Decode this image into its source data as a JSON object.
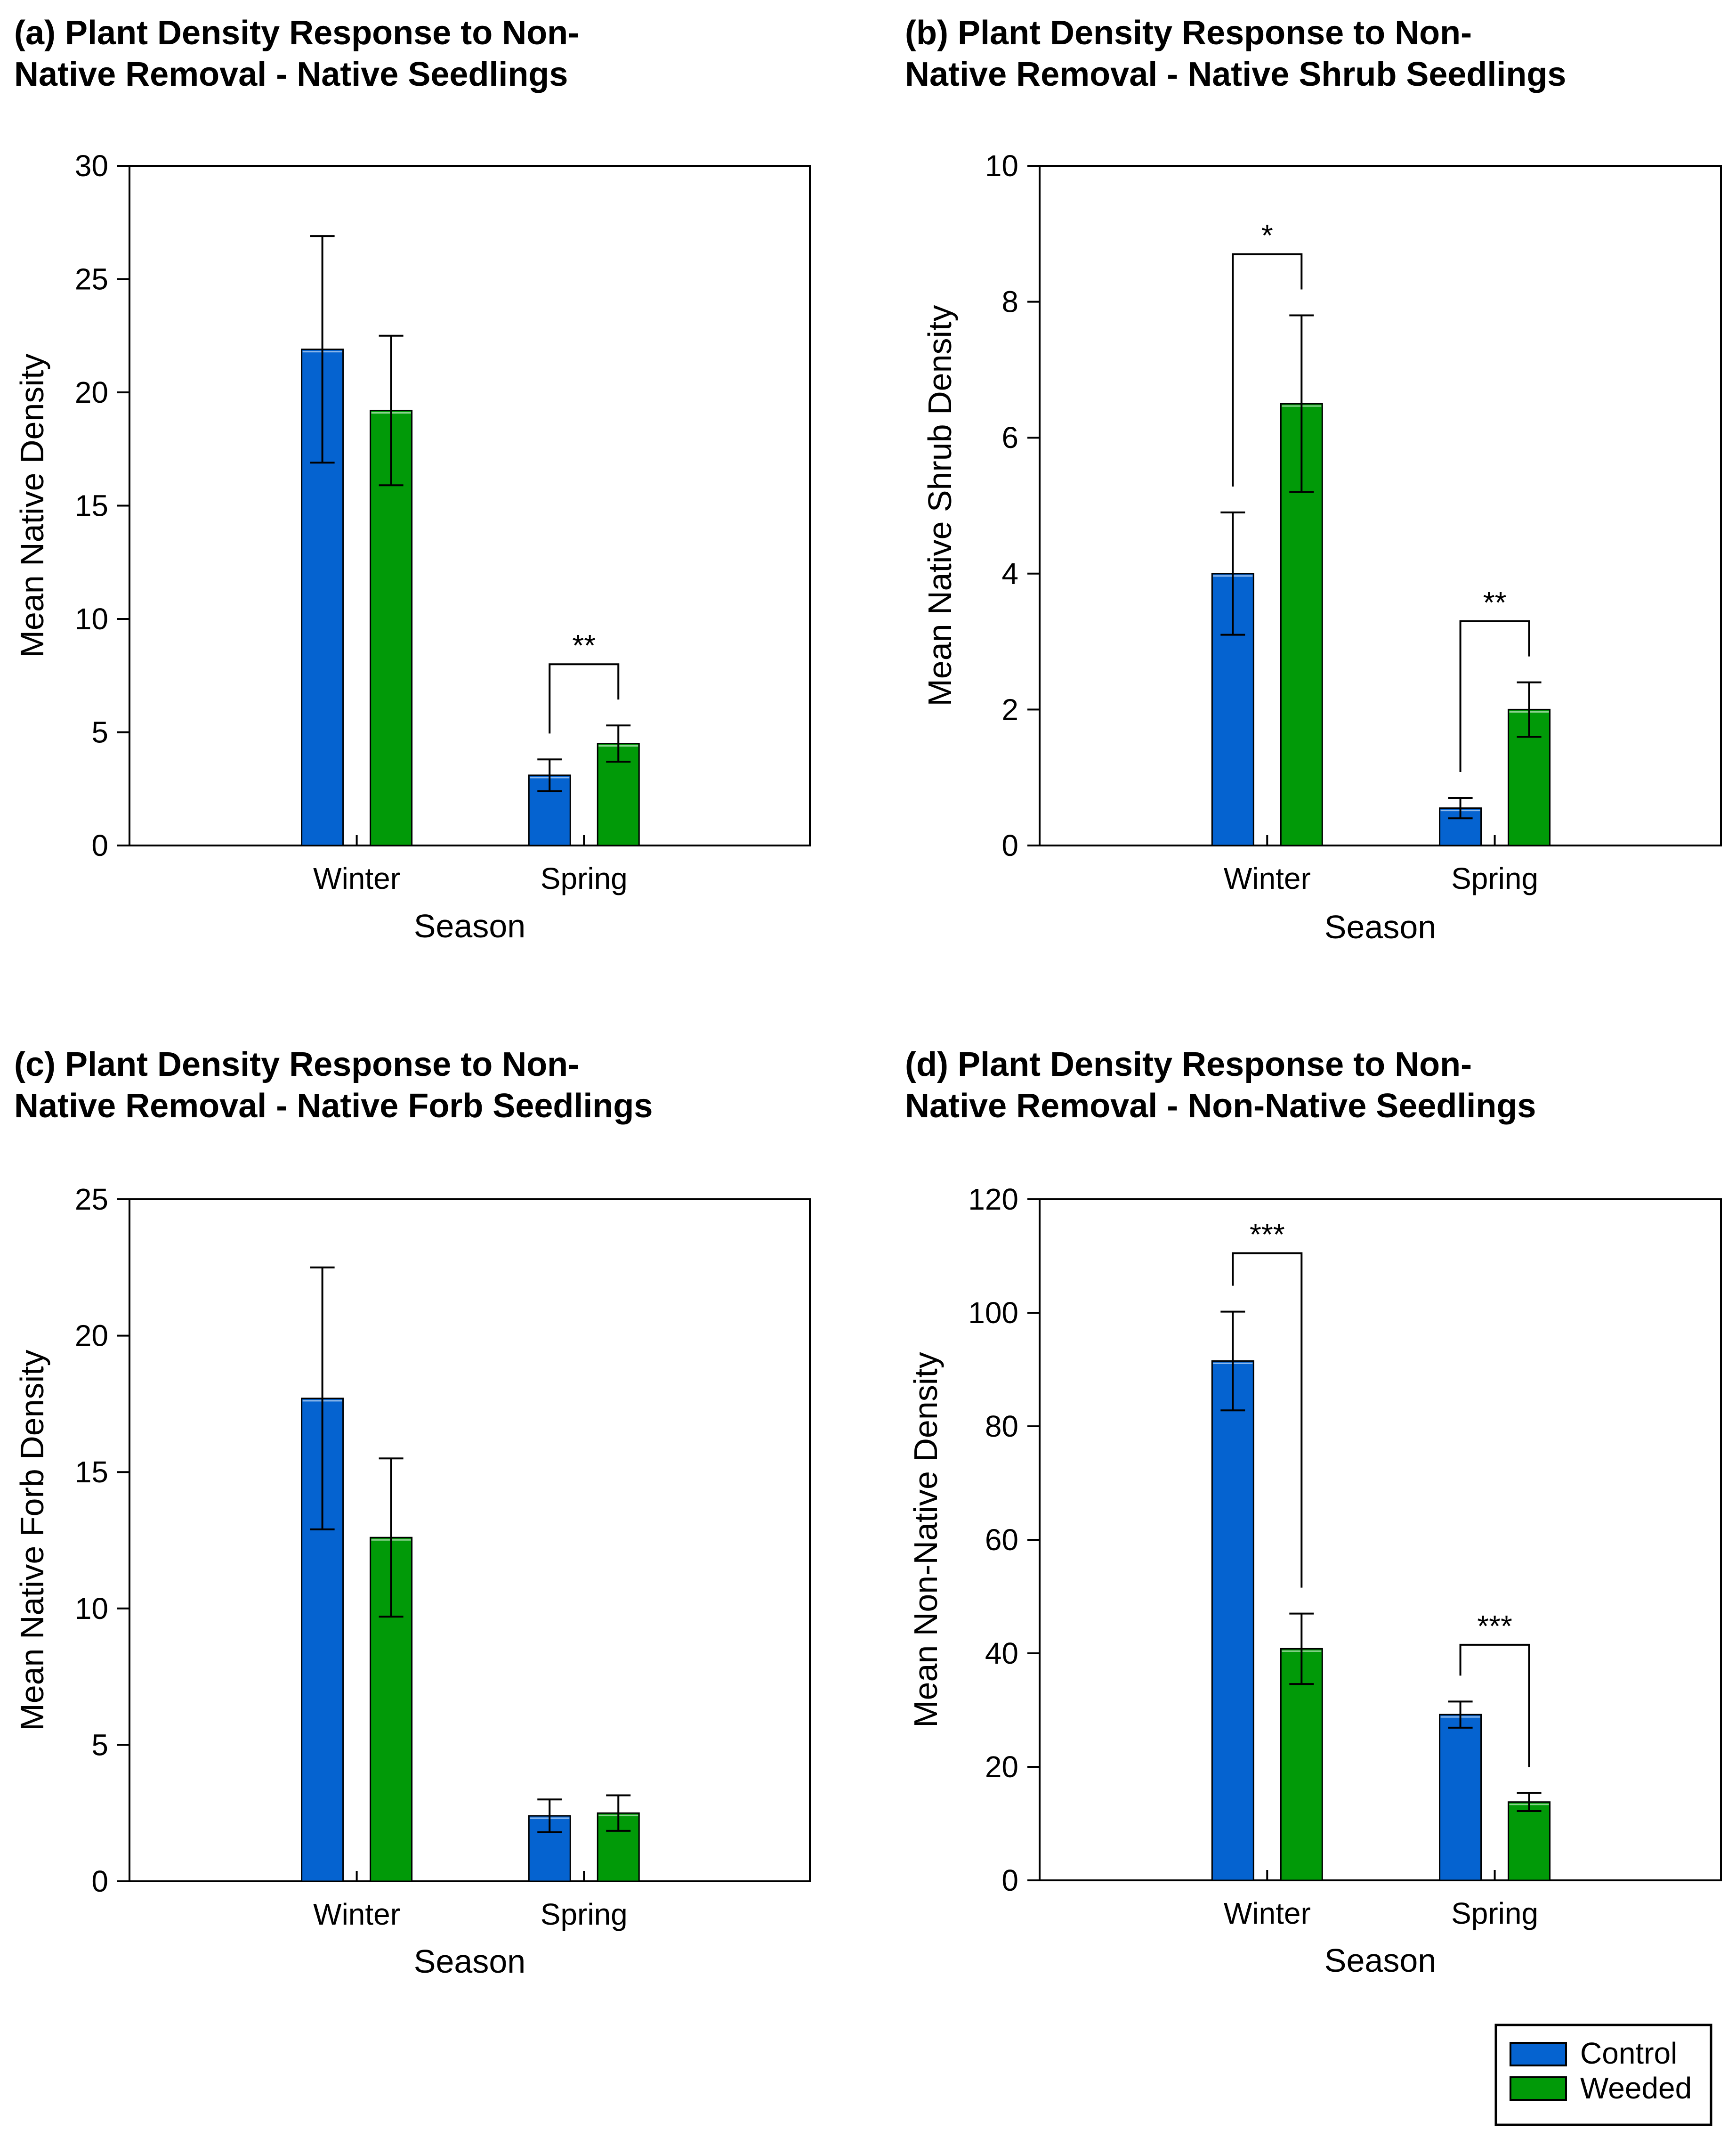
{
  "legend": {
    "items": [
      {
        "label": "Control",
        "color": "#0563D0"
      },
      {
        "label": "Weeded",
        "color": "#019A08"
      }
    ]
  },
  "chart_data": [
    {
      "type": "bar",
      "title_lines": [
        "(a) Plant Density Response to Non-",
        "Native Removal - Native Seedlings"
      ],
      "xlabel": "Season",
      "ylabel": "Mean Native Density",
      "ylim": [
        0,
        30
      ],
      "yticks": [
        0,
        5,
        10,
        15,
        20,
        25,
        30
      ],
      "categories": [
        "Winter",
        "Spring"
      ],
      "series": [
        {
          "name": "Control",
          "values": [
            21.9,
            3.1
          ],
          "errors": [
            5.0,
            0.7
          ]
        },
        {
          "name": "Weeded",
          "values": [
            19.2,
            4.5
          ],
          "errors": [
            3.3,
            0.8
          ]
        }
      ],
      "significance": [
        {
          "category": "Spring",
          "label": "**",
          "bracket_y": 8
        }
      ],
      "grid": false
    },
    {
      "type": "bar",
      "title_lines": [
        "(b) Plant Density Response to Non-",
        "Native Removal - Native Shrub Seedlings"
      ],
      "xlabel": "Season",
      "ylabel": "Mean Native Shrub Density",
      "ylim": [
        0,
        10
      ],
      "yticks": [
        0,
        2,
        4,
        6,
        8,
        10
      ],
      "categories": [
        "Winter",
        "Spring"
      ],
      "series": [
        {
          "name": "Control",
          "values": [
            4.0,
            0.55
          ],
          "errors": [
            0.9,
            0.15
          ]
        },
        {
          "name": "Weeded",
          "values": [
            6.5,
            2.0
          ],
          "errors": [
            1.3,
            0.4
          ]
        }
      ],
      "significance": [
        {
          "category": "Winter",
          "label": "*",
          "bracket_y": 8.7
        },
        {
          "category": "Spring",
          "label": "**",
          "bracket_y": 3.3
        }
      ],
      "grid": false
    },
    {
      "type": "bar",
      "title_lines": [
        "(c) Plant Density Response to Non-",
        "Native Removal - Native Forb Seedlings"
      ],
      "xlabel": "Season",
      "ylabel": "Mean Native Forb Density",
      "ylim": [
        0,
        25
      ],
      "yticks": [
        0,
        5,
        10,
        15,
        20,
        25
      ],
      "categories": [
        "Winter",
        "Spring"
      ],
      "series": [
        {
          "name": "Control",
          "values": [
            17.7,
            2.4
          ],
          "errors": [
            4.8,
            0.6
          ]
        },
        {
          "name": "Weeded",
          "values": [
            12.6,
            2.5
          ],
          "errors": [
            2.9,
            0.65
          ]
        }
      ],
      "significance": [],
      "grid": false
    },
    {
      "type": "bar",
      "title_lines": [
        "(d) Plant Density Response to Non-",
        "Native Removal - Non-Native Seedlings"
      ],
      "xlabel": "Season",
      "ylabel": "Mean Non-Native Density",
      "ylim": [
        0,
        120
      ],
      "yticks": [
        0,
        20,
        40,
        60,
        80,
        100,
        120
      ],
      "categories": [
        "Winter",
        "Spring"
      ],
      "series": [
        {
          "name": "Control",
          "values": [
            91.5,
            29.2
          ],
          "errors": [
            8.7,
            2.3
          ]
        },
        {
          "name": "Weeded",
          "values": [
            40.8,
            13.8
          ],
          "errors": [
            6.2,
            1.6
          ]
        }
      ],
      "significance": [
        {
          "category": "Winter",
          "label": "***",
          "bracket_y": 110.5
        },
        {
          "category": "Spring",
          "label": "***",
          "bracket_y": 41.5
        }
      ],
      "grid": false
    }
  ]
}
